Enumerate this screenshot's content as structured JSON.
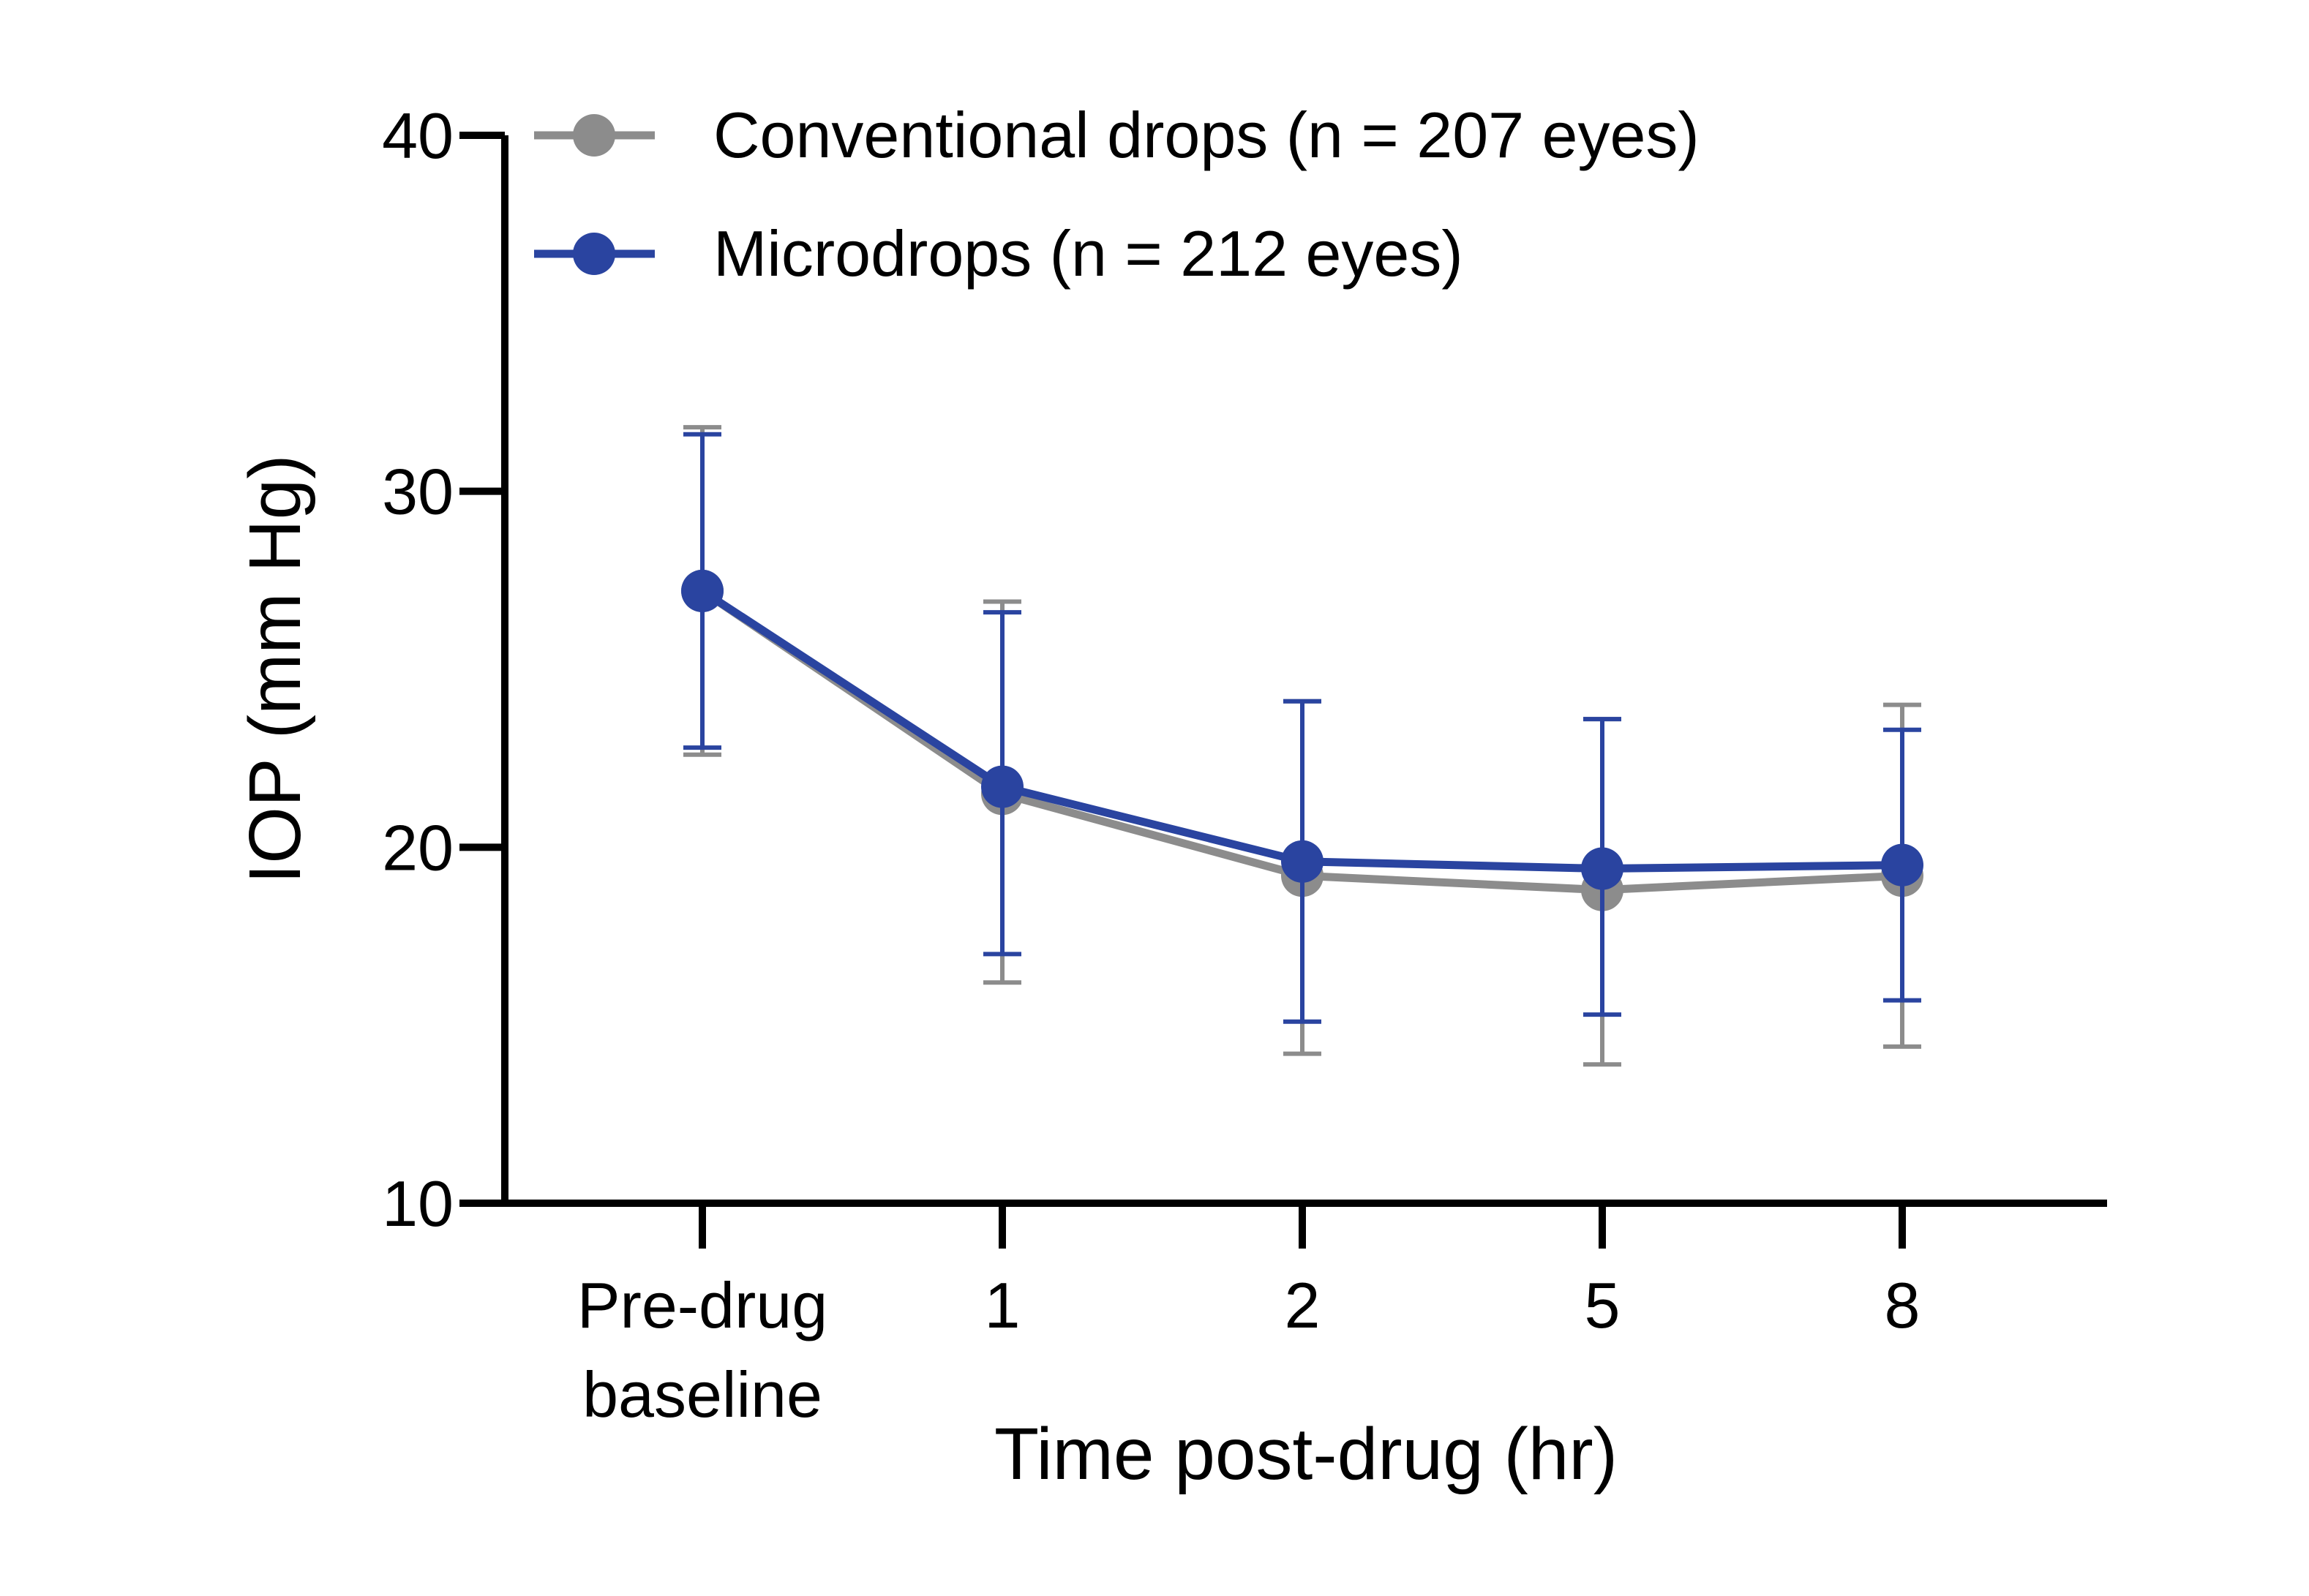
{
  "chart_data": {
    "type": "line",
    "categories": [
      [
        "Pre-drug",
        "baseline"
      ],
      [
        "1"
      ],
      [
        "2"
      ],
      [
        "5"
      ],
      [
        "8"
      ]
    ],
    "xlabel": "Time post-drug (hr)",
    "ylabel": "IOP (mm Hg)",
    "ylim": [
      10,
      40
    ],
    "yticks": [
      "10",
      "20",
      "30",
      "40"
    ],
    "grid": false,
    "legend_position": "top-left",
    "series": [
      {
        "name": "Conventional drops (n = 207 eyes)",
        "color": "#8c8c8c",
        "values": [
          27.2,
          21.5,
          19.2,
          18.8,
          19.2
        ],
        "error_upper": [
          31.8,
          26.9,
          24.1,
          23.6,
          24.0
        ],
        "error_lower": [
          22.6,
          16.2,
          14.2,
          13.9,
          14.4
        ]
      },
      {
        "name": "Microdrops (n = 212 eyes)",
        "color": "#2a44a0",
        "values": [
          27.2,
          21.7,
          19.6,
          19.4,
          19.5
        ],
        "error_upper": [
          31.6,
          26.6,
          24.1,
          23.6,
          23.3
        ],
        "error_lower": [
          22.8,
          17.0,
          15.1,
          15.3,
          15.7
        ]
      }
    ]
  }
}
